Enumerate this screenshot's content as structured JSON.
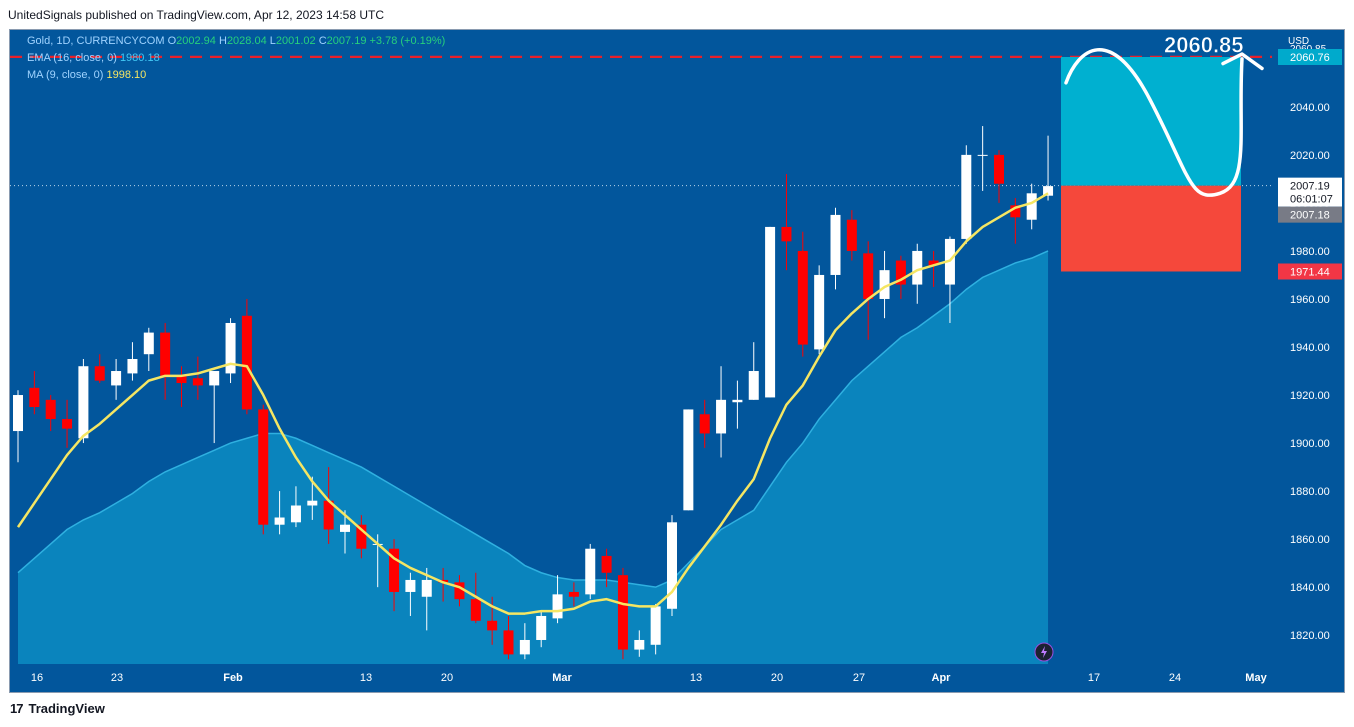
{
  "header": {
    "publisher_line": "UnitedSignals published on TradingView.com, Apr 12, 2023 14:58 UTC"
  },
  "legend": {
    "symbol": "Gold, 1D, CURRENCYCOM",
    "ohlc": {
      "o_label": "O",
      "o": "2002.94",
      "h_label": "H",
      "h": "2028.04",
      "l_label": "L",
      "l": "2001.02",
      "c_label": "C",
      "c": "2007.19",
      "change": "+3.78 (+0.19%)"
    },
    "ema_label": "EMA (16, close, 0)",
    "ema_value": "1980.18",
    "ma_label": "MA (9, close, 0)",
    "ma_value": "1998.10"
  },
  "footer": {
    "brand": "TradingView",
    "logo_text": "17"
  },
  "colors": {
    "bg": "#02569c",
    "up": "#ffffff",
    "down": "#ff0000",
    "ma": "#f5e663",
    "ema_fill": "#0a84bd",
    "target": "#00b0d0",
    "stop": "#f5483b"
  },
  "chart_data": {
    "type": "candlestick",
    "currency": "USD",
    "x_ticks": [
      "16",
      "23",
      "Feb",
      "13",
      "20",
      "Mar",
      "13",
      "20",
      "27",
      "Apr",
      "17",
      "24",
      "May"
    ],
    "y_ticks": [
      "1820.00",
      "1840.00",
      "1860.00",
      "1880.00",
      "1900.00",
      "1920.00",
      "1940.00",
      "1960.00",
      "1980.00",
      "2000.00",
      "2020.00",
      "2040.00"
    ],
    "y_range": [
      1808,
      2072
    ],
    "price_labels": {
      "target_top": "2060.76",
      "current": "2007.19",
      "countdown": "06:01:07",
      "entry": "2007.18",
      "stop": "1971.44",
      "hidden_top": "2060.85"
    },
    "annotation_text": "2060.85",
    "candles": [
      {
        "o": 1905,
        "h": 1922,
        "l": 1892,
        "c": 1920
      },
      {
        "o": 1923,
        "h": 1930,
        "l": 1912,
        "c": 1915
      },
      {
        "o": 1918,
        "h": 1920,
        "l": 1905,
        "c": 1910
      },
      {
        "o": 1910,
        "h": 1918,
        "l": 1898,
        "c": 1906
      },
      {
        "o": 1902,
        "h": 1935,
        "l": 1900,
        "c": 1932
      },
      {
        "o": 1932,
        "h": 1937,
        "l": 1925,
        "c": 1926
      },
      {
        "o": 1924,
        "h": 1935,
        "l": 1918,
        "c": 1930
      },
      {
        "o": 1929,
        "h": 1942,
        "l": 1926,
        "c": 1935
      },
      {
        "o": 1937,
        "h": 1948,
        "l": 1930,
        "c": 1946
      },
      {
        "o": 1946,
        "h": 1950,
        "l": 1918,
        "c": 1928
      },
      {
        "o": 1928,
        "h": 1932,
        "l": 1915,
        "c": 1925
      },
      {
        "o": 1927,
        "h": 1936,
        "l": 1918,
        "c": 1924
      },
      {
        "o": 1924,
        "h": 1930,
        "l": 1900,
        "c": 1930
      },
      {
        "o": 1929,
        "h": 1952,
        "l": 1925,
        "c": 1950
      },
      {
        "o": 1953,
        "h": 1960,
        "l": 1912,
        "c": 1914
      },
      {
        "o": 1914,
        "h": 1916,
        "l": 1862,
        "c": 1866
      },
      {
        "o": 1866,
        "h": 1880,
        "l": 1862,
        "c": 1869
      },
      {
        "o": 1867,
        "h": 1882,
        "l": 1865,
        "c": 1874
      },
      {
        "o": 1874,
        "h": 1886,
        "l": 1868,
        "c": 1876
      },
      {
        "o": 1876,
        "h": 1890,
        "l": 1858,
        "c": 1864
      },
      {
        "o": 1863,
        "h": 1872,
        "l": 1854,
        "c": 1866
      },
      {
        "o": 1866,
        "h": 1870,
        "l": 1852,
        "c": 1856
      },
      {
        "o": 1858,
        "h": 1862,
        "l": 1840,
        "c": 1858
      },
      {
        "o": 1856,
        "h": 1860,
        "l": 1830,
        "c": 1838
      },
      {
        "o": 1838,
        "h": 1846,
        "l": 1828,
        "c": 1843
      },
      {
        "o": 1836,
        "h": 1848,
        "l": 1822,
        "c": 1843
      },
      {
        "o": 1843,
        "h": 1848,
        "l": 1834,
        "c": 1842
      },
      {
        "o": 1842,
        "h": 1845,
        "l": 1832,
        "c": 1835
      },
      {
        "o": 1835,
        "h": 1846,
        "l": 1825,
        "c": 1826
      },
      {
        "o": 1826,
        "h": 1836,
        "l": 1816,
        "c": 1822
      },
      {
        "o": 1822,
        "h": 1828,
        "l": 1810,
        "c": 1812
      },
      {
        "o": 1812,
        "h": 1825,
        "l": 1810,
        "c": 1818
      },
      {
        "o": 1818,
        "h": 1830,
        "l": 1815,
        "c": 1828
      },
      {
        "o": 1827,
        "h": 1845,
        "l": 1825,
        "c": 1837
      },
      {
        "o": 1838,
        "h": 1842,
        "l": 1832,
        "c": 1836
      },
      {
        "o": 1837,
        "h": 1858,
        "l": 1835,
        "c": 1856
      },
      {
        "o": 1853,
        "h": 1856,
        "l": 1840,
        "c": 1846
      },
      {
        "o": 1845,
        "h": 1848,
        "l": 1810,
        "c": 1814
      },
      {
        "o": 1814,
        "h": 1822,
        "l": 1811,
        "c": 1818
      },
      {
        "o": 1816,
        "h": 1833,
        "l": 1812,
        "c": 1832
      },
      {
        "o": 1831,
        "h": 1870,
        "l": 1828,
        "c": 1867
      },
      {
        "o": 1872,
        "h": 1914,
        "l": 1872,
        "c": 1914
      },
      {
        "o": 1912,
        "h": 1918,
        "l": 1898,
        "c": 1904
      },
      {
        "o": 1904,
        "h": 1932,
        "l": 1894,
        "c": 1918
      },
      {
        "o": 1917,
        "h": 1926,
        "l": 1906,
        "c": 1918
      },
      {
        "o": 1918,
        "h": 1942,
        "l": 1918,
        "c": 1930
      },
      {
        "o": 1919,
        "h": 1990,
        "l": 1919,
        "c": 1990
      },
      {
        "o": 1990,
        "h": 2012,
        "l": 1972,
        "c": 1984
      },
      {
        "o": 1980,
        "h": 1988,
        "l": 1936,
        "c": 1941
      },
      {
        "o": 1939,
        "h": 1974,
        "l": 1937,
        "c": 1970
      },
      {
        "o": 1970,
        "h": 1998,
        "l": 1964,
        "c": 1995
      },
      {
        "o": 1993,
        "h": 1997,
        "l": 1976,
        "c": 1980
      },
      {
        "o": 1979,
        "h": 1984,
        "l": 1943,
        "c": 1960
      },
      {
        "o": 1960,
        "h": 1980,
        "l": 1952,
        "c": 1972
      },
      {
        "o": 1976,
        "h": 1978,
        "l": 1960,
        "c": 1966
      },
      {
        "o": 1966,
        "h": 1983,
        "l": 1958,
        "c": 1980
      },
      {
        "o": 1976,
        "h": 1980,
        "l": 1965,
        "c": 1974
      },
      {
        "o": 1966,
        "h": 1986,
        "l": 1950,
        "c": 1985
      },
      {
        "o": 1985,
        "h": 2024,
        "l": 1983,
        "c": 2020
      },
      {
        "o": 2020,
        "h": 2032,
        "l": 2005,
        "c": 2020
      },
      {
        "o": 2020,
        "h": 2022,
        "l": 2000,
        "c": 2008
      },
      {
        "o": 1999,
        "h": 2002,
        "l": 1983,
        "c": 1994
      },
      {
        "o": 1993,
        "h": 2008,
        "l": 1989,
        "c": 2004
      },
      {
        "o": 2003,
        "h": 2028,
        "l": 2001,
        "c": 2007
      }
    ],
    "ma9": [
      1865,
      1875,
      1885,
      1895,
      1903,
      1908,
      1914,
      1920,
      1926,
      1928,
      1928,
      1929,
      1931,
      1933,
      1932,
      1920,
      1906,
      1894,
      1884,
      1876,
      1870,
      1864,
      1858,
      1852,
      1848,
      1845,
      1842,
      1840,
      1836,
      1832,
      1829,
      1829,
      1830,
      1830,
      1831,
      1834,
      1835,
      1833,
      1832,
      1832,
      1838,
      1848,
      1857,
      1866,
      1876,
      1885,
      1902,
      1916,
      1924,
      1936,
      1947,
      1954,
      1960,
      1965,
      1968,
      1972,
      1974,
      1976,
      1984,
      1990,
      1994,
      1998,
      2000,
      2004
    ],
    "ema16": [
      1846,
      1852,
      1858,
      1864,
      1868,
      1871,
      1875,
      1879,
      1884,
      1888,
      1891,
      1894,
      1897,
      1900,
      1902,
      1904,
      1904,
      1902,
      1899,
      1896,
      1893,
      1890,
      1886,
      1882,
      1878,
      1874,
      1870,
      1866,
      1862,
      1858,
      1854,
      1849,
      1846,
      1844,
      1843,
      1843,
      1843,
      1842,
      1841,
      1840,
      1843,
      1850,
      1857,
      1864,
      1868,
      1872,
      1882,
      1892,
      1900,
      1910,
      1918,
      1926,
      1932,
      1938,
      1944,
      1948,
      1953,
      1958,
      1964,
      1969,
      1972,
      1975,
      1977,
      1980
    ]
  }
}
